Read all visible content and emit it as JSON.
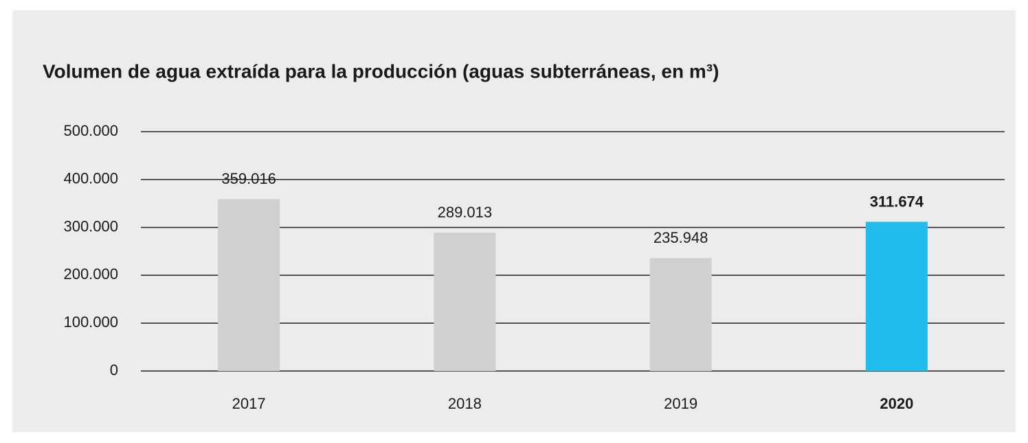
{
  "chart_data": {
    "type": "bar",
    "title": "Volumen de agua extraída para la producción (aguas subterráneas, en m³)",
    "categories": [
      "2017",
      "2018",
      "2019",
      "2020"
    ],
    "values": [
      359016,
      289013,
      235948,
      311674
    ],
    "value_labels": [
      "359.016",
      "289.013",
      "235.948",
      "311.674"
    ],
    "colors": [
      "#d0d0d0",
      "#d0d0d0",
      "#d0d0d0",
      "#1ebdeb"
    ],
    "highlight_index": 3,
    "ylim": [
      0,
      500000
    ],
    "yticks": [
      0,
      {
        "value": 100000,
        "label": "100.000"
      },
      {
        "value": 200000,
        "label": "200.000"
      },
      {
        "value": 300000,
        "label": "300.000"
      },
      {
        "value": 400000,
        "label": "400.000"
      },
      {
        "value": 500000,
        "label": "500.000"
      }
    ],
    "grid": true
  }
}
